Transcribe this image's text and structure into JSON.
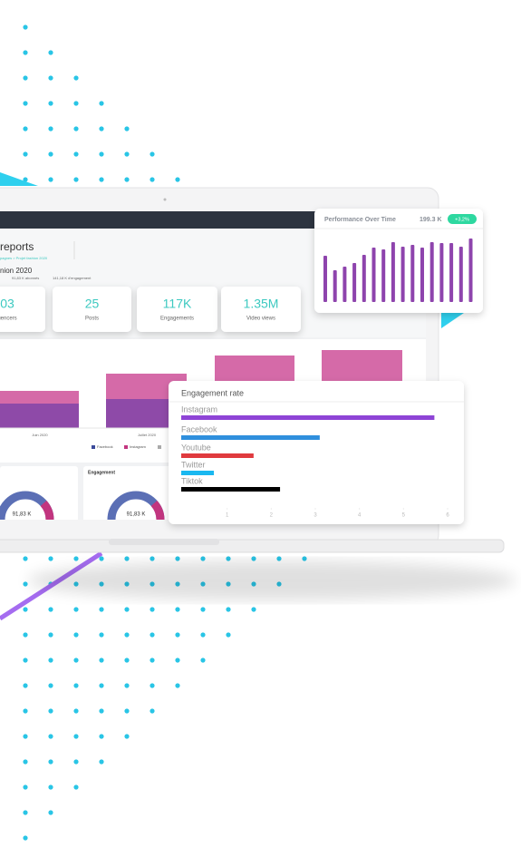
{
  "dashboard": {
    "title": "reports",
    "breadcrumb": "pagnes  >  Projet fashion 2020",
    "subtitle": "nion 2020",
    "stats": [
      "91,83 K abonnés",
      "141,18 K d'engagement"
    ],
    "kpis": [
      {
        "value": "03",
        "label": "uencers"
      },
      {
        "value": "25",
        "label": "Posts"
      },
      {
        "value": "117K",
        "label": "Engagements"
      },
      {
        "value": "1.35M",
        "label": "Video views"
      }
    ],
    "months": [
      "Juin 2020",
      "Juillet 2020"
    ],
    "legend": [
      "Facebook",
      "Instagram"
    ],
    "donut_values": [
      "91,83 K",
      "91,83 K"
    ],
    "panel_title": "Engagement"
  },
  "chart_data": [
    {
      "type": "bar",
      "title": "Performance Over Time",
      "total": "199.3 K",
      "badge": "+3,2%",
      "color": "#8e44ad",
      "values": [
        51,
        35,
        39,
        43,
        52,
        60,
        58,
        66,
        61,
        63,
        60,
        66,
        65,
        65,
        61,
        70
      ]
    },
    {
      "type": "hbar",
      "title": "Engagement rate",
      "categories": [
        "Instagram",
        "Facebook",
        "Youtube",
        "Twitter",
        "Tiktok"
      ],
      "values": [
        5.7,
        3.1,
        1.6,
        0.7,
        2.2
      ],
      "colors": [
        "#8e44d6",
        "#2f8fdd",
        "#e03a3e",
        "#1ab8f0",
        "#000000"
      ],
      "xlim": [
        0,
        6
      ],
      "xticks": [
        1,
        2,
        3,
        4,
        5,
        6
      ]
    }
  ]
}
